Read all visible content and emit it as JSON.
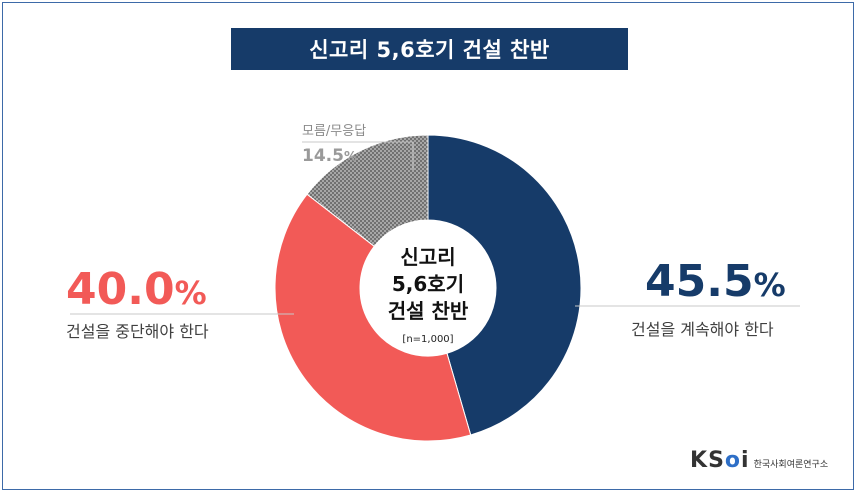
{
  "title": "신고리 5,6호기 건설 찬반",
  "chart_data": {
    "type": "pie",
    "title": "신고리 5,6호기 건설 찬반",
    "center_label_lines": [
      "신고리",
      "5,6호기",
      "건설 찬반"
    ],
    "sample_size": "[n=1,000]",
    "slices": [
      {
        "label": "건설을 계속해야 한다",
        "value": 45.5,
        "value_text": "45.5",
        "unit": "%",
        "color": "#163b69"
      },
      {
        "label": "건설을 중단해야 한다",
        "value": 40.0,
        "value_text": "40.0",
        "unit": "%",
        "color": "#f25a57"
      },
      {
        "label": "모름/무응답",
        "value": 14.5,
        "value_text": "14.5",
        "unit": "%",
        "color": "#9a9a9a",
        "pattern": "dotted"
      }
    ]
  },
  "logo": {
    "mark_k": "K",
    "mark_s": "S",
    "mark_o": "o",
    "mark_i": "i",
    "org_name": "한국사회여론연구소"
  }
}
